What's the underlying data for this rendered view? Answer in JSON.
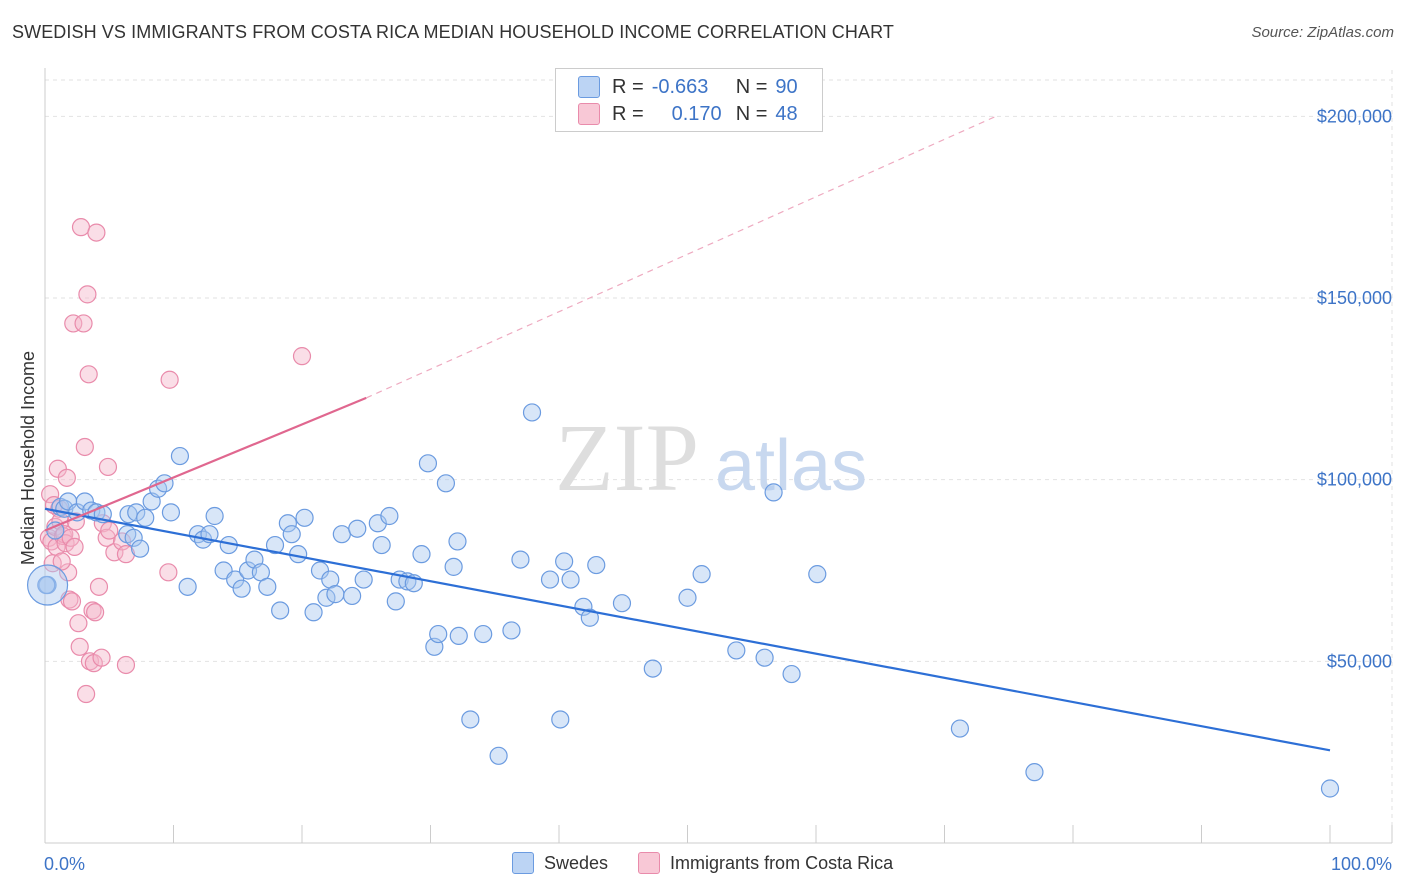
{
  "title": "SWEDISH VS IMMIGRANTS FROM COSTA RICA MEDIAN HOUSEHOLD INCOME CORRELATION CHART",
  "source": "Source: ZipAtlas.com",
  "watermark": {
    "zip": "ZIP",
    "atlas": "atlas"
  },
  "legend": {
    "rows": [
      {
        "r_label": "R =",
        "r_value": "-0.663",
        "n_label": "N =",
        "n_value": "90",
        "color": "#a9c7f0"
      },
      {
        "r_label": "R =",
        "r_value": "0.170",
        "n_label": "N =",
        "n_value": "48",
        "color": "#f5b6c9"
      }
    ]
  },
  "bottom_legend": [
    {
      "label": "Swedes",
      "color": "#a9c7f0"
    },
    {
      "label": "Immigrants from Costa Rica",
      "color": "#f5b6c9"
    }
  ],
  "chart_data": {
    "type": "scatter",
    "ylabel": "Median Household Income",
    "xlim": [
      0,
      100
    ],
    "ylim": [
      0,
      210000
    ],
    "x_tick_labels": [
      "0.0%",
      "100.0%"
    ],
    "y_ticks": [
      {
        "value": 50000,
        "label": "$50,000"
      },
      {
        "value": 100000,
        "label": "$100,000"
      },
      {
        "value": 150000,
        "label": "$150,000"
      },
      {
        "value": 200000,
        "label": "$200,000"
      }
    ],
    "grid": true,
    "series": [
      {
        "name": "Swedes",
        "color": "#6b9be0",
        "fill": "#a9c7f0",
        "trend": {
          "x0": 0,
          "y0": 92000,
          "x1": 100,
          "y1": 25500
        },
        "points": [
          [
            0.2,
            71000
          ],
          [
            0.8,
            86000
          ],
          [
            1.2,
            92500
          ],
          [
            1.5,
            92000
          ],
          [
            1.8,
            94000
          ],
          [
            2.5,
            91000
          ],
          [
            3.1,
            94000
          ],
          [
            3.6,
            91500
          ],
          [
            4.0,
            91000
          ],
          [
            4.5,
            90500
          ],
          [
            6.4,
            85000
          ],
          [
            6.9,
            84000
          ],
          [
            6.5,
            90500
          ],
          [
            7.1,
            91000
          ],
          [
            7.4,
            81000
          ],
          [
            7.8,
            89500
          ],
          [
            8.3,
            94000
          ],
          [
            8.8,
            97500
          ],
          [
            9.3,
            99000
          ],
          [
            9.8,
            91000
          ],
          [
            10.5,
            106500
          ],
          [
            11.1,
            70500
          ],
          [
            11.9,
            85000
          ],
          [
            12.3,
            83500
          ],
          [
            12.8,
            85000
          ],
          [
            13.2,
            90000
          ],
          [
            13.9,
            75000
          ],
          [
            14.3,
            82000
          ],
          [
            14.8,
            72500
          ],
          [
            15.3,
            70000
          ],
          [
            15.8,
            75000
          ],
          [
            16.3,
            78000
          ],
          [
            16.8,
            74500
          ],
          [
            17.3,
            70500
          ],
          [
            17.9,
            82000
          ],
          [
            18.3,
            64000
          ],
          [
            18.9,
            88000
          ],
          [
            19.2,
            85000
          ],
          [
            19.7,
            79500
          ],
          [
            20.2,
            89500
          ],
          [
            20.9,
            63500
          ],
          [
            21.4,
            75000
          ],
          [
            21.9,
            67500
          ],
          [
            22.2,
            72500
          ],
          [
            22.6,
            68500
          ],
          [
            23.1,
            85000
          ],
          [
            23.9,
            68000
          ],
          [
            24.3,
            86500
          ],
          [
            24.8,
            72500
          ],
          [
            25.9,
            88000
          ],
          [
            26.2,
            82000
          ],
          [
            26.8,
            90000
          ],
          [
            27.3,
            66500
          ],
          [
            27.6,
            72500
          ],
          [
            28.2,
            72000
          ],
          [
            28.7,
            71500
          ],
          [
            29.3,
            79500
          ],
          [
            29.8,
            104500
          ],
          [
            30.3,
            54000
          ],
          [
            30.6,
            57500
          ],
          [
            31.2,
            99000
          ],
          [
            31.8,
            76000
          ],
          [
            32.1,
            83000
          ],
          [
            32.2,
            57000
          ],
          [
            33.1,
            34000
          ],
          [
            34.1,
            57500
          ],
          [
            35.3,
            24000
          ],
          [
            36.3,
            58500
          ],
          [
            37.0,
            78000
          ],
          [
            37.9,
            118500
          ],
          [
            39.3,
            72500
          ],
          [
            40.1,
            34000
          ],
          [
            40.4,
            77500
          ],
          [
            40.9,
            72500
          ],
          [
            41.9,
            65000
          ],
          [
            42.4,
            62000
          ],
          [
            42.9,
            76500
          ],
          [
            44.9,
            66000
          ],
          [
            47.3,
            48000
          ],
          [
            50.0,
            67500
          ],
          [
            51.1,
            74000
          ],
          [
            53.8,
            53000
          ],
          [
            56.0,
            51000
          ],
          [
            56.7,
            96500
          ],
          [
            58.1,
            46500
          ],
          [
            60.1,
            74000
          ],
          [
            71.2,
            31500
          ],
          [
            77.0,
            19500
          ],
          [
            100.0,
            15000
          ],
          [
            0.1,
            71000
          ]
        ]
      },
      {
        "name": "Immigrants from Costa Rica",
        "color": "#e98bab",
        "fill": "#f5b6c9",
        "trend": {
          "x0": 0,
          "y0": 86000,
          "x1": 25,
          "y1": 122500
        },
        "trend_ext": {
          "x0": 25,
          "y0": 122500,
          "x1": 74,
          "y1": 200000
        },
        "points": [
          [
            0.3,
            84000
          ],
          [
            0.4,
            96000
          ],
          [
            0.5,
            83000
          ],
          [
            0.6,
            77000
          ],
          [
            0.8,
            87000
          ],
          [
            0.9,
            81500
          ],
          [
            1.0,
            103000
          ],
          [
            1.1,
            92000
          ],
          [
            1.2,
            88500
          ],
          [
            1.4,
            84500
          ],
          [
            1.5,
            85000
          ],
          [
            1.6,
            82500
          ],
          [
            1.7,
            100500
          ],
          [
            1.8,
            74500
          ],
          [
            1.9,
            67000
          ],
          [
            2.0,
            84000
          ],
          [
            2.1,
            66500
          ],
          [
            2.2,
            143000
          ],
          [
            2.3,
            81500
          ],
          [
            2.4,
            88500
          ],
          [
            2.6,
            60500
          ],
          [
            2.7,
            54000
          ],
          [
            2.8,
            169500
          ],
          [
            3.0,
            143000
          ],
          [
            3.1,
            109000
          ],
          [
            3.2,
            41000
          ],
          [
            3.3,
            151000
          ],
          [
            3.4,
            129000
          ],
          [
            3.5,
            50000
          ],
          [
            3.7,
            64000
          ],
          [
            3.8,
            49500
          ],
          [
            3.9,
            63500
          ],
          [
            4.0,
            168000
          ],
          [
            4.2,
            70500
          ],
          [
            4.4,
            51000
          ],
          [
            4.5,
            88000
          ],
          [
            4.8,
            84000
          ],
          [
            4.9,
            103500
          ],
          [
            5.0,
            86000
          ],
          [
            5.4,
            80000
          ],
          [
            6.0,
            83000
          ],
          [
            6.3,
            79500
          ],
          [
            6.3,
            49000
          ],
          [
            9.6,
            74500
          ],
          [
            9.7,
            127500
          ],
          [
            20.0,
            134000
          ],
          [
            1.3,
            77500
          ],
          [
            0.7,
            93000
          ]
        ]
      }
    ]
  }
}
